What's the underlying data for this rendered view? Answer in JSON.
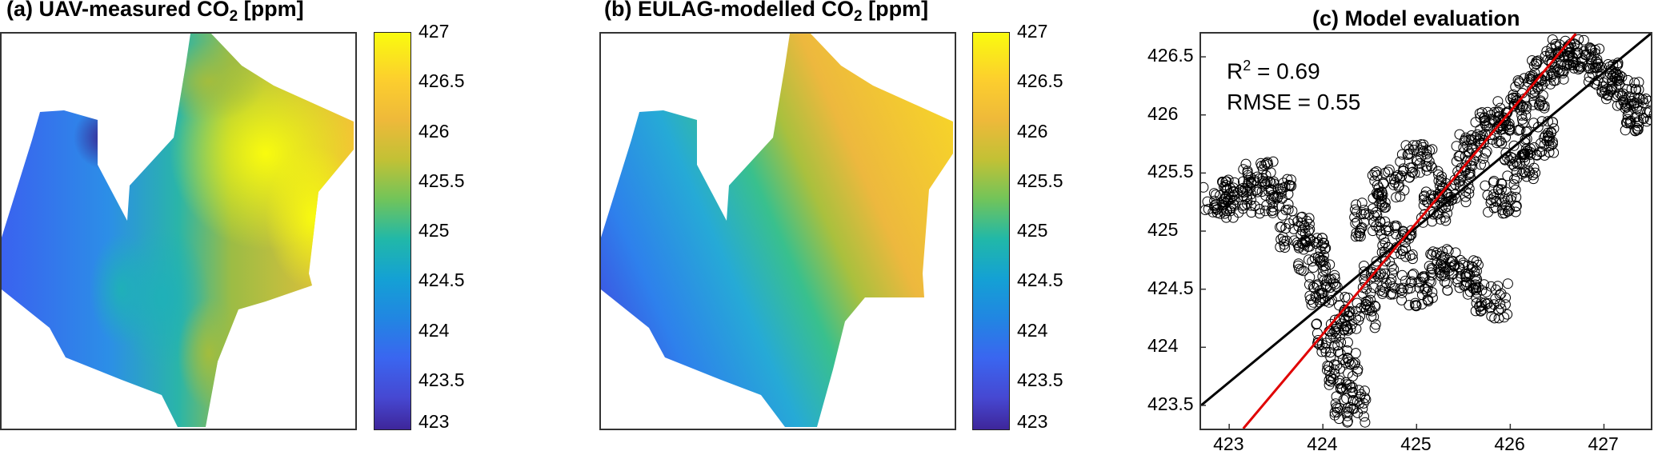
{
  "colors": {
    "black_line": "#000000",
    "red_line": "#e00000",
    "frame": "#333333"
  },
  "panels": {
    "a": {
      "title_prefix": "(a) UAV-measured CO",
      "title_sub": "2",
      "title_suffix": " [ppm]"
    },
    "b": {
      "title_prefix": "(b) EULAG-modelled CO",
      "title_sub": "2",
      "title_suffix": " [ppm]"
    },
    "c": {
      "title": "(c) Model evaluation"
    }
  },
  "colorbar": {
    "ticks": [
      "427",
      "426.5",
      "426",
      "425.5",
      "425",
      "424.5",
      "424",
      "423.5",
      "423"
    ],
    "min": 423,
    "max": 427,
    "colormap": "parula"
  },
  "stats": {
    "r2_label": "R",
    "r2_sup": "2",
    "r2_value": " = 0.69",
    "rmse": "RMSE = 0.55"
  },
  "chart_data": [
    {
      "type": "heatmap",
      "title": "(a) UAV-measured CO2 [ppm]",
      "colorbar_range": [
        423,
        427
      ],
      "description_values": {
        "approx_min": 423.2,
        "approx_max": 427.0
      }
    },
    {
      "type": "heatmap",
      "title": "(b) EULAG-modelled CO2 [ppm]",
      "colorbar_range": [
        423,
        427
      ],
      "description_values": {
        "approx_min": 423.9,
        "approx_max": 426.6
      }
    },
    {
      "type": "scatter",
      "title": "(c) Model evaluation",
      "xlim": [
        422.7,
        427.5
      ],
      "ylim": [
        423.3,
        426.7
      ],
      "x_ticks": [
        "423",
        "424",
        "425",
        "426",
        "427"
      ],
      "y_ticks": [
        "426.5",
        "426",
        "425.5",
        "425",
        "424.5",
        "424",
        "423.5"
      ],
      "lines": [
        {
          "color": "black",
          "points": [
            [
              422.7,
              423.5
            ],
            [
              427.5,
              426.7
            ]
          ]
        },
        {
          "color": "red",
          "points": [
            [
              423.15,
              423.3
            ],
            [
              426.7,
              426.7
            ]
          ]
        }
      ],
      "clusters": [
        [
          422.9,
          425.25
        ],
        [
          423.1,
          425.3
        ],
        [
          423.3,
          425.45
        ],
        [
          423.5,
          425.3
        ],
        [
          423.7,
          425.0
        ],
        [
          423.9,
          424.8
        ],
        [
          424.0,
          424.5
        ],
        [
          424.1,
          424.1
        ],
        [
          424.2,
          423.8
        ],
        [
          424.3,
          423.5
        ],
        [
          424.4,
          424.3
        ],
        [
          424.6,
          424.6
        ],
        [
          424.8,
          424.9
        ],
        [
          425.0,
          424.5
        ],
        [
          425.3,
          424.7
        ],
        [
          425.5,
          424.6
        ],
        [
          425.8,
          424.4
        ],
        [
          424.5,
          425.1
        ],
        [
          424.7,
          425.4
        ],
        [
          425.0,
          425.6
        ],
        [
          425.2,
          425.2
        ],
        [
          425.4,
          425.4
        ],
        [
          425.6,
          425.7
        ],
        [
          425.8,
          425.9
        ],
        [
          426.0,
          426.0
        ],
        [
          426.2,
          426.2
        ],
        [
          426.4,
          426.4
        ],
        [
          426.6,
          426.5
        ],
        [
          426.8,
          426.5
        ],
        [
          427.0,
          426.3
        ],
        [
          427.2,
          426.2
        ],
        [
          427.4,
          426.0
        ],
        [
          426.1,
          425.6
        ],
        [
          426.3,
          425.8
        ],
        [
          425.9,
          425.3
        ]
      ],
      "stats": {
        "R2": 0.69,
        "RMSE": 0.55
      }
    }
  ]
}
